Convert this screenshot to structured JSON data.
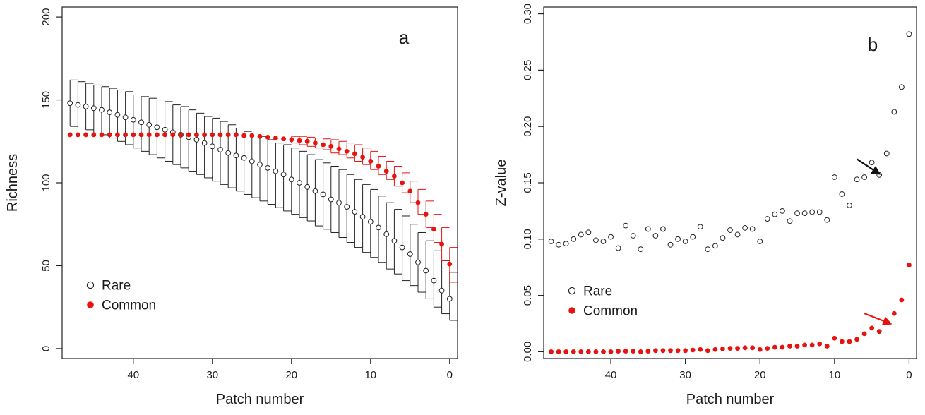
{
  "figure": {
    "colors": {
      "rare_stroke": "#222222",
      "common_fill": "#e8130f",
      "axis": "#222222"
    }
  },
  "chart_data": [
    {
      "type": "scatter",
      "panel_label": "a",
      "xlabel": "Patch number",
      "ylabel": "Richness",
      "xlim": [
        49,
        -1
      ],
      "ylim": [
        -6,
        206
      ],
      "x_ticks": [
        40,
        30,
        20,
        10,
        0
      ],
      "y_ticks": [
        0,
        50,
        100,
        150,
        200
      ],
      "grid": false,
      "legend": {
        "position": "bottom-left",
        "entries": [
          "Rare",
          "Common"
        ]
      },
      "x": [
        48,
        47,
        46,
        45,
        44,
        43,
        42,
        41,
        40,
        39,
        38,
        37,
        36,
        35,
        34,
        33,
        32,
        31,
        30,
        29,
        28,
        27,
        26,
        25,
        24,
        23,
        22,
        21,
        20,
        19,
        18,
        17,
        16,
        15,
        14,
        13,
        12,
        11,
        10,
        9,
        8,
        7,
        6,
        5,
        4,
        3,
        2,
        1,
        0
      ],
      "series": [
        {
          "name": "Rare",
          "marker": "open-circle",
          "values": [
            148,
            147,
            146,
            145,
            144,
            142.5,
            141,
            139.5,
            138,
            136.5,
            135,
            133.5,
            132,
            130.5,
            129,
            127.5,
            126,
            124,
            122,
            120,
            118,
            116.5,
            115,
            113,
            111,
            109,
            107,
            105,
            102,
            100,
            97.5,
            95,
            93,
            90,
            88,
            85.5,
            82.5,
            79.5,
            76.5,
            73,
            69,
            65,
            61,
            57,
            52,
            47,
            41,
            35,
            30
          ],
          "error_low": [
            134,
            133,
            132,
            130,
            129,
            127,
            125,
            123,
            121,
            119,
            117,
            115,
            113,
            111,
            109,
            107,
            105,
            103,
            101,
            99,
            97,
            95,
            93,
            91,
            89,
            87,
            85,
            83,
            81,
            79,
            77,
            74,
            72,
            70,
            67,
            64,
            61,
            58,
            55,
            52,
            48,
            45,
            41,
            38,
            34,
            30,
            25,
            21,
            17
          ],
          "error_high": [
            162,
            161,
            160,
            159,
            158,
            157,
            156,
            155,
            153,
            152,
            151,
            150,
            149,
            147,
            146,
            144,
            142,
            140,
            139,
            137,
            135,
            133,
            131,
            130,
            128,
            126,
            124,
            123,
            121,
            119,
            117,
            114,
            112,
            110,
            108,
            105,
            102,
            99,
            96,
            92,
            88,
            84,
            80,
            75,
            70,
            65,
            59,
            53,
            46
          ]
        },
        {
          "name": "Common",
          "marker": "filled-circle",
          "values": [
            129,
            129,
            129,
            129,
            129,
            129,
            129,
            129,
            129,
            129,
            129,
            129,
            129,
            129,
            129,
            129,
            129,
            129,
            129,
            129,
            129,
            129,
            128.5,
            128.5,
            128,
            127.5,
            127,
            126.5,
            126,
            125.5,
            125,
            124,
            123,
            122,
            120.5,
            119,
            117.5,
            115.5,
            113,
            110,
            107,
            104,
            100,
            95,
            88,
            81,
            72,
            63,
            51
          ],
          "error_low": [
            null,
            null,
            null,
            null,
            null,
            null,
            null,
            null,
            null,
            null,
            null,
            null,
            null,
            null,
            null,
            null,
            null,
            null,
            null,
            null,
            null,
            null,
            null,
            null,
            null,
            null,
            null,
            null,
            124,
            123,
            122,
            121,
            120,
            118,
            117,
            115,
            113,
            111,
            108,
            105,
            102,
            98,
            94,
            88,
            81,
            73,
            64,
            53,
            40
          ],
          "error_high": [
            null,
            null,
            null,
            null,
            null,
            null,
            null,
            null,
            null,
            null,
            null,
            null,
            null,
            null,
            null,
            null,
            null,
            null,
            null,
            null,
            null,
            null,
            null,
            null,
            null,
            null,
            null,
            null,
            128,
            128,
            127.5,
            127,
            126.5,
            126,
            125,
            124,
            123,
            121,
            119,
            116,
            113,
            110,
            106,
            101,
            96,
            89,
            81,
            73,
            61
          ]
        }
      ]
    },
    {
      "type": "scatter",
      "panel_label": "b",
      "xlabel": "Patch number",
      "ylabel": "Z-value",
      "xlim": [
        49,
        -1
      ],
      "ylim": [
        -0.006,
        0.306
      ],
      "x_ticks": [
        40,
        30,
        20,
        10,
        0
      ],
      "y_ticks": [
        "0.00",
        "0.05",
        "0.10",
        "0.15",
        "0.20",
        "0.25",
        "0.30"
      ],
      "grid": false,
      "legend": {
        "position": "bottom-left",
        "entries": [
          "Rare",
          "Common"
        ]
      },
      "x": [
        48,
        47,
        46,
        45,
        44,
        43,
        42,
        41,
        40,
        39,
        38,
        37,
        36,
        35,
        34,
        33,
        32,
        31,
        30,
        29,
        28,
        27,
        26,
        25,
        24,
        23,
        22,
        21,
        20,
        19,
        18,
        17,
        16,
        15,
        14,
        13,
        12,
        11,
        10,
        9,
        8,
        7,
        6,
        5,
        4,
        3,
        2,
        1,
        0
      ],
      "series": [
        {
          "name": "Rare",
          "marker": "open-circle",
          "values": [
            0.098,
            0.095,
            0.096,
            0.1,
            0.104,
            0.106,
            0.099,
            0.098,
            0.102,
            0.092,
            0.112,
            0.103,
            0.091,
            0.109,
            0.103,
            0.109,
            0.095,
            0.1,
            0.098,
            0.102,
            0.111,
            0.091,
            0.094,
            0.101,
            0.108,
            0.104,
            0.11,
            0.109,
            0.098,
            0.118,
            0.122,
            0.125,
            0.116,
            0.123,
            0.123,
            0.124,
            0.124,
            0.117,
            0.155,
            0.14,
            0.13,
            0.153,
            0.155,
            0.168,
            0.157,
            0.176,
            0.213,
            0.235,
            0.282
          ]
        },
        {
          "name": "Common",
          "marker": "filled-circle",
          "values": [
            0,
            0,
            0,
            0,
            0,
            0,
            0,
            0,
            0,
            0.0005,
            0.0005,
            0.0005,
            0,
            0.0005,
            0.001,
            0.001,
            0.001,
            0.001,
            0.001,
            0.0015,
            0.002,
            0.001,
            0.002,
            0.0025,
            0.003,
            0.003,
            0.0035,
            0.0035,
            0.002,
            0.003,
            0.004,
            0.004,
            0.005,
            0.005,
            0.006,
            0.006,
            0.007,
            0.005,
            0.012,
            0.009,
            0.009,
            0.011,
            0.016,
            0.021,
            0.018,
            0.026,
            0.034,
            0.046,
            0.077
          ]
        }
      ],
      "annotations": [
        {
          "type": "arrow",
          "color": "black",
          "from": [
            7,
            0.171
          ],
          "to": [
            4,
            0.158
          ]
        },
        {
          "type": "arrow",
          "color": "red",
          "from": [
            6,
            0.034
          ],
          "to": [
            2.5,
            0.025
          ]
        }
      ]
    }
  ]
}
